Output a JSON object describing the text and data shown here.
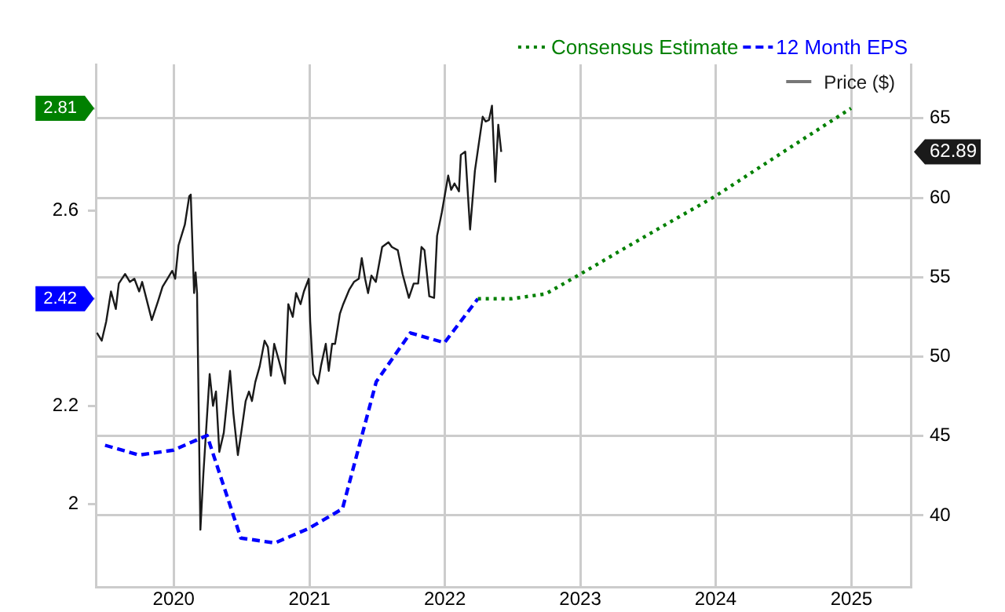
{
  "chart_data": {
    "type": "line",
    "legend": "top right",
    "grid": true,
    "marker": "none",
    "xlim": [
      "2019-06-05",
      "2025-06-10"
    ],
    "xticks": [
      "2020",
      "2021",
      "2022",
      "2023",
      "2024",
      "2025"
    ],
    "ylim": [
      1.83,
      2.9
    ],
    "yticks": [
      2,
      2.2,
      2.42,
      2.6,
      2.81
    ],
    "y2lim": [
      35.5,
      68.4
    ],
    "y2ticks": [
      40,
      45,
      50,
      55,
      60,
      62.89,
      65
    ],
    "series": [
      {
        "name": "Consensus Estimate",
        "color": "#008000",
        "line_style": "dotted",
        "axis": "y",
        "x": [
          "2022-03-31",
          "2022-06-30",
          "2022-09-30",
          "2022-12-31",
          "2023-06-30",
          "2023-12-31",
          "2024-06-30",
          "2024-12-31"
        ],
        "values": [
          2.42,
          2.42,
          2.43,
          2.47,
          2.55,
          2.63,
          2.72,
          2.81
        ]
      },
      {
        "name": "12 Month EPS",
        "color": "#0000ff",
        "line_style": "dashed",
        "axis": "y",
        "x": [
          "2019-06-30",
          "2019-09-30",
          "2019-12-31",
          "2020-03-31",
          "2020-06-30",
          "2020-09-30",
          "2020-12-31",
          "2021-03-31",
          "2021-06-30",
          "2021-09-30",
          "2021-12-31",
          "2022-03-31"
        ],
        "values": [
          2.12,
          2.1,
          2.11,
          2.14,
          1.93,
          1.92,
          1.95,
          1.99,
          2.25,
          2.35,
          2.33,
          2.42
        ]
      },
      {
        "name": "Price ($)",
        "color": "#1a1a1a",
        "line_style": "solid",
        "axis": "y2",
        "x": [
          "2019-06-08",
          "2019-06-21",
          "2019-07-03",
          "2019-07-16",
          "2019-07-29",
          "2019-08-06",
          "2019-08-23",
          "2019-09-05",
          "2019-09-17",
          "2019-09-30",
          "2019-10-08",
          "2019-10-21",
          "2019-11-03",
          "2019-11-20",
          "2019-12-02",
          "2019-12-15",
          "2019-12-28",
          "2020-01-05",
          "2020-01-14",
          "2020-01-31",
          "2020-02-12",
          "2020-02-16",
          "2020-02-25",
          "2020-02-29",
          "2020-03-04",
          "2020-03-13",
          "2020-03-21",
          "2020-04-07",
          "2020-04-16",
          "2020-04-24",
          "2020-05-03",
          "2020-05-15",
          "2020-06-01",
          "2020-06-10",
          "2020-06-22",
          "2020-07-01",
          "2020-07-13",
          "2020-07-22",
          "2020-07-30",
          "2020-08-08",
          "2020-08-20",
          "2020-09-02",
          "2020-09-11",
          "2020-09-19",
          "2020-09-28",
          "2020-10-10",
          "2020-10-27",
          "2020-11-05",
          "2020-11-17",
          "2020-11-26",
          "2020-12-08",
          "2020-12-17",
          "2020-12-30",
          "2021-01-03",
          "2021-01-11",
          "2021-01-24",
          "2021-02-01",
          "2021-02-14",
          "2021-02-22",
          "2021-03-03",
          "2021-03-11",
          "2021-03-24",
          "2021-04-02",
          "2021-04-18",
          "2021-05-01",
          "2021-05-14",
          "2021-05-22",
          "2021-05-31",
          "2021-06-08",
          "2021-06-17",
          "2021-06-29",
          "2021-07-16",
          "2021-08-02",
          "2021-08-11",
          "2021-08-27",
          "2021-09-09",
          "2021-09-26",
          "2021-10-09",
          "2021-10-21",
          "2021-10-30",
          "2021-11-07",
          "2021-11-20",
          "2021-12-03",
          "2021-12-11",
          "2021-12-24",
          "2022-01-10",
          "2022-01-18",
          "2022-01-27",
          "2022-02-08",
          "2022-02-13",
          "2022-02-25",
          "2022-03-10",
          "2022-03-23",
          "2022-03-31",
          "2022-04-13",
          "2022-04-21",
          "2022-04-30",
          "2022-05-08",
          "2022-05-17",
          "2022-05-25",
          "2022-06-02"
        ],
        "values": [
          51.5,
          51.0,
          52.2,
          54.1,
          53.0,
          54.6,
          55.2,
          54.7,
          54.9,
          54.1,
          54.7,
          53.5,
          52.3,
          53.5,
          54.4,
          54.9,
          55.4,
          54.9,
          57.0,
          58.3,
          60.1,
          60.2,
          54.0,
          55.3,
          54.0,
          39.1,
          42.6,
          48.9,
          46.9,
          47.8,
          44.0,
          45.2,
          49.1,
          46.4,
          43.8,
          45.2,
          47.2,
          47.8,
          47.2,
          48.4,
          49.4,
          51.0,
          50.6,
          48.8,
          50.8,
          49.8,
          48.3,
          53.3,
          52.5,
          54.0,
          53.3,
          54.1,
          54.9,
          52.2,
          48.9,
          48.3,
          49.4,
          50.8,
          49.1,
          50.8,
          50.8,
          52.7,
          53.3,
          54.2,
          54.7,
          54.9,
          56.2,
          54.9,
          54.0,
          55.1,
          54.7,
          56.9,
          57.2,
          56.9,
          56.7,
          55.2,
          53.7,
          54.6,
          54.6,
          56.9,
          56.7,
          53.8,
          53.7,
          57.6,
          59.1,
          61.4,
          60.5,
          60.9,
          60.4,
          62.7,
          62.9,
          58.0,
          61.7,
          63.0,
          65.1,
          64.8,
          64.9,
          65.8,
          61.0,
          64.6,
          62.89
        ]
      }
    ]
  }
}
